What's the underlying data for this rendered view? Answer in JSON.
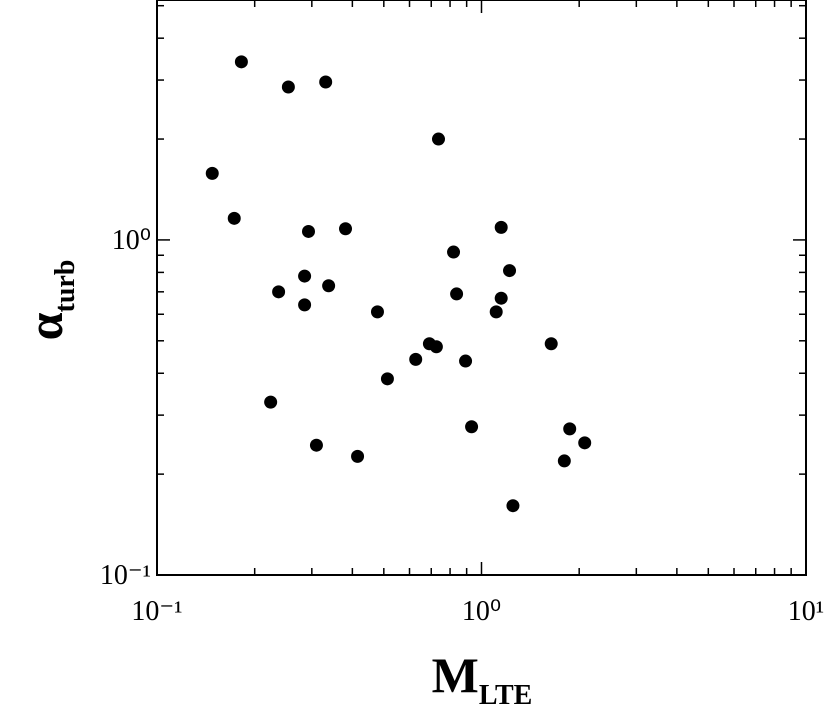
{
  "chart_data": {
    "type": "scatter",
    "xlabel": "M",
    "xlabel_sub": "LTE",
    "ylabel": "α",
    "ylabel_sub": "turb",
    "log_x": true,
    "log_y": true,
    "color": "#000000",
    "xlim": [
      0.1,
      10
    ],
    "ylim": [
      0.1,
      5.2
    ],
    "xticks": [
      {
        "value": 0.1,
        "label": "10⁻¹"
      },
      {
        "value": 1,
        "label": "10⁰"
      },
      {
        "value": 10,
        "label": "10¹"
      }
    ],
    "yticks": [
      {
        "value": 0.1,
        "label": "10⁻¹"
      },
      {
        "value": 1,
        "label": "10⁰"
      }
    ],
    "xminorticks": [
      0.2,
      0.3,
      0.4,
      0.5,
      0.6,
      0.7,
      0.8,
      0.9,
      2,
      3,
      4,
      5,
      6,
      7,
      8,
      9
    ],
    "yminorticks": [
      0.2,
      0.3,
      0.4,
      0.5,
      0.6,
      0.7,
      0.8,
      0.9,
      2,
      3,
      4,
      5
    ],
    "x": [
      0.182,
      0.254,
      0.331,
      0.737,
      0.148,
      0.173,
      0.293,
      0.381,
      1.15,
      0.82,
      1.22,
      0.285,
      0.237,
      0.338,
      0.838,
      1.15,
      0.285,
      1.11,
      0.478,
      1.64,
      0.691,
      0.726,
      0.627,
      0.893,
      0.513,
      0.224,
      0.932,
      1.87,
      0.31,
      2.08,
      0.415,
      1.8,
      1.25
    ],
    "values": [
      3.4,
      2.86,
      2.96,
      2.0,
      1.58,
      1.16,
      1.06,
      1.08,
      1.09,
      0.92,
      0.81,
      0.78,
      0.7,
      0.73,
      0.69,
      0.67,
      0.64,
      0.61,
      0.61,
      0.49,
      0.49,
      0.48,
      0.44,
      0.435,
      0.385,
      0.328,
      0.277,
      0.273,
      0.244,
      0.248,
      0.226,
      0.219,
      0.161
    ]
  }
}
